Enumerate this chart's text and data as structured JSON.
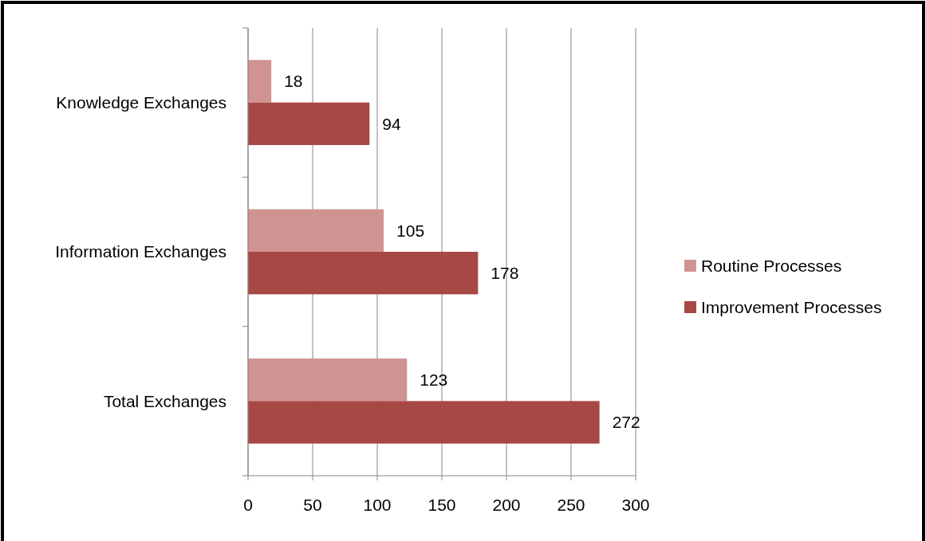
{
  "chart_data": {
    "type": "bar",
    "orientation": "horizontal",
    "categories": [
      "Knowledge Exchanges",
      "Information Exchanges",
      "Total Exchanges"
    ],
    "series": [
      {
        "name": "Routine Processes",
        "color": "#d09392",
        "values": [
          18,
          105,
          123
        ]
      },
      {
        "name": "Improvement Processes",
        "color": "#a84845",
        "values": [
          94,
          178,
          272
        ]
      }
    ],
    "xlim": [
      0,
      300
    ],
    "xticks": [
      0,
      50,
      100,
      150,
      200,
      250,
      300
    ],
    "grid": "x",
    "legend": "right",
    "data_labels": true
  }
}
